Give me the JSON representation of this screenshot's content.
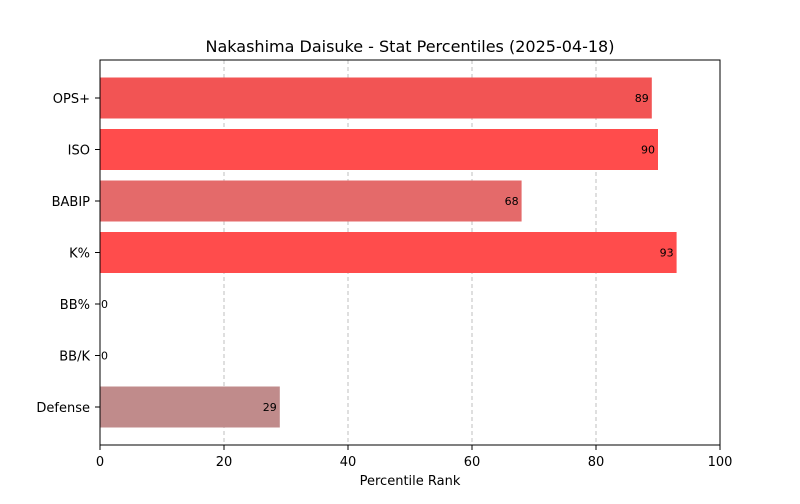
{
  "chart_data": {
    "type": "bar",
    "orientation": "horizontal",
    "title": "Nakashima Daisuke - Stat Percentiles (2025-04-18)",
    "xlabel": "Percentile Rank",
    "ylabel": "",
    "xlim": [
      0,
      100
    ],
    "xticks": [
      0,
      20,
      40,
      60,
      80,
      100
    ],
    "grid": "x-dashed",
    "categories": [
      "OPS+",
      "ISO",
      "BABIP",
      "K%",
      "BB%",
      "BB/K",
      "Defense"
    ],
    "values": [
      89,
      90,
      68,
      93,
      0,
      0,
      29
    ],
    "colors": [
      "#f25454",
      "#ff4c4c",
      "#e46a6a",
      "#ff4c4c",
      "#ffffff",
      "#ffffff",
      "#c08b8b"
    ]
  }
}
